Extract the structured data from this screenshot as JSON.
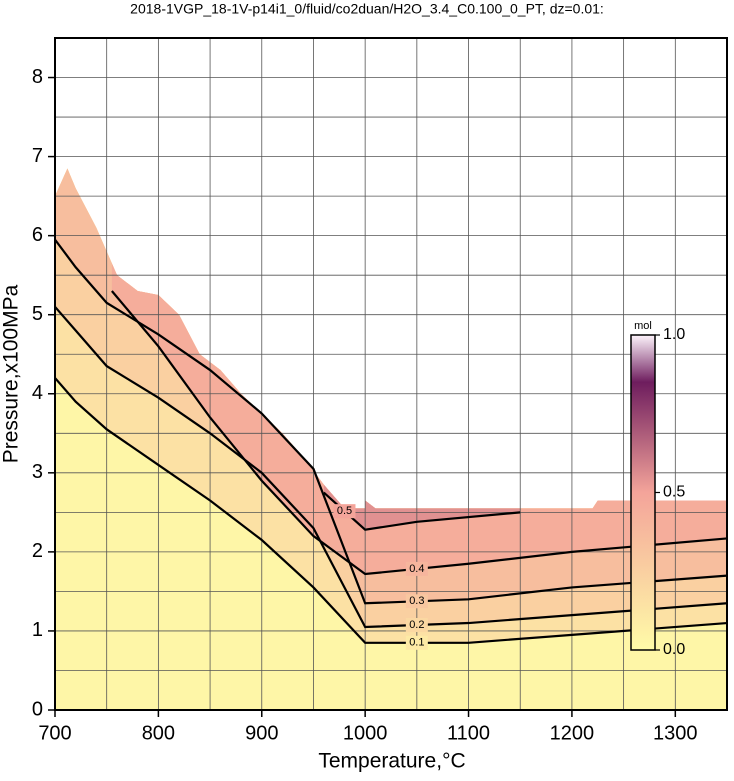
{
  "chart_data": {
    "type": "contour",
    "title": "2018-1VGP_18-1V-p14i1_0/fluid/co2duan/H2O_3.4_C0.100_0_PT, dz=0.01:",
    "x_label": "Temperature,°C",
    "y_label": "Pressure,x100MPa",
    "xlim": [
      700,
      1350
    ],
    "ylim": [
      0,
      8.5
    ],
    "xticks": [
      700,
      800,
      900,
      1000,
      1100,
      1200,
      1300
    ],
    "yticks": [
      0,
      1,
      2,
      3,
      4,
      5,
      6,
      7,
      8
    ],
    "grid": true,
    "xgrid_step": 50,
    "ygrid_step": 0.5,
    "field_boundary": {
      "x": [
        700,
        700,
        712,
        720,
        740,
        760,
        780,
        800,
        820,
        840,
        860,
        880,
        900,
        920,
        940,
        960,
        980,
        1000,
        1000,
        1010,
        1220,
        1225,
        1350,
        1350
      ],
      "y": [
        0,
        6.5,
        6.85,
        6.6,
        6.1,
        5.5,
        5.3,
        5.25,
        5.0,
        4.5,
        4.3,
        4.0,
        3.75,
        3.5,
        3.2,
        2.85,
        2.55,
        2.55,
        2.65,
        2.55,
        2.55,
        2.65,
        2.65,
        0
      ]
    },
    "contours": [
      {
        "level": 0.1,
        "x": [
          700,
          720,
          750,
          800,
          850,
          900,
          950,
          1000,
          1100,
          1200,
          1350
        ],
        "y": [
          4.2,
          3.9,
          3.55,
          3.1,
          2.65,
          2.15,
          1.55,
          0.85,
          0.85,
          0.95,
          1.1
        ]
      },
      {
        "level": 0.2,
        "x": [
          700,
          720,
          750,
          800,
          850,
          900,
          950,
          1000,
          1100,
          1200,
          1350
        ],
        "y": [
          5.1,
          4.8,
          4.35,
          3.95,
          3.5,
          3.0,
          2.3,
          1.05,
          1.1,
          1.2,
          1.35
        ]
      },
      {
        "level": 0.3,
        "x": [
          700,
          720,
          750,
          800,
          850,
          900,
          950,
          1000,
          1100,
          1200,
          1350
        ],
        "y": [
          5.95,
          5.6,
          5.15,
          4.75,
          4.3,
          3.75,
          3.05,
          1.35,
          1.4,
          1.55,
          1.7
        ]
      },
      {
        "level": 0.4,
        "x": [
          755,
          800,
          850,
          900,
          950,
          1000,
          1100,
          1200,
          1350
        ],
        "y": [
          5.3,
          4.6,
          3.7,
          2.9,
          2.2,
          1.72,
          1.85,
          2.0,
          2.17
        ]
      },
      {
        "level": 0.5,
        "x": [
          960,
          1000,
          1050,
          1150
        ],
        "y": [
          2.75,
          2.28,
          2.38,
          2.5
        ]
      }
    ],
    "colorbar": {
      "title": "mol",
      "ticks": [
        {
          "value": 0,
          "label": "0.0"
        },
        {
          "value": 0.5,
          "label": "0.5"
        },
        {
          "value": 1,
          "label": "1.0"
        }
      ],
      "colormap": [
        {
          "value": 0,
          "color": "#fffba8"
        },
        {
          "value": 0.5,
          "color": "#f4a49a"
        },
        {
          "value": 0.85,
          "color": "#6e1d5e"
        },
        {
          "value": 1,
          "color": "#fdf4fb"
        }
      ]
    }
  }
}
